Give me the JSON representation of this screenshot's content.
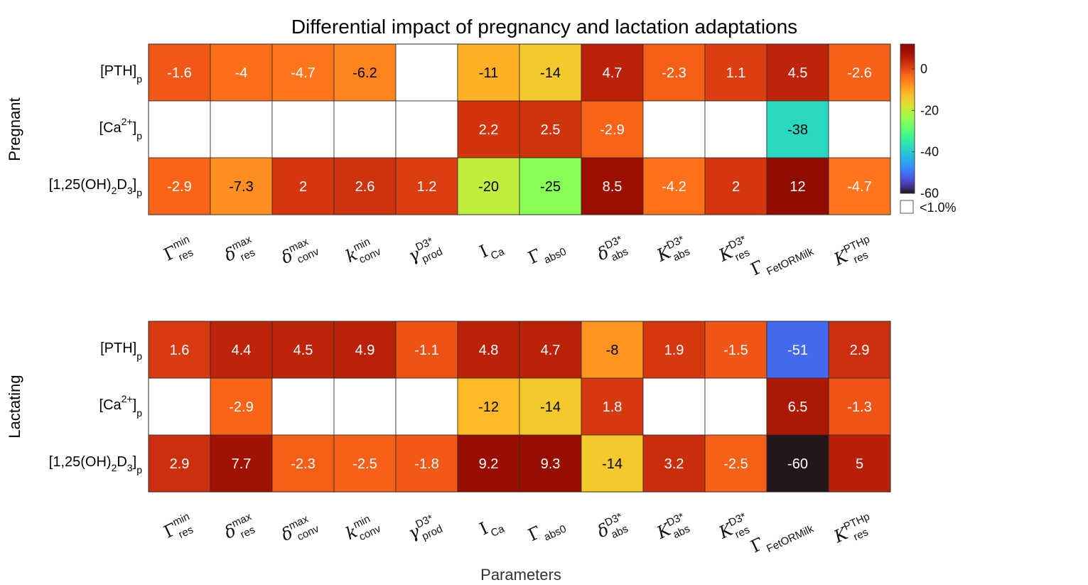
{
  "chart_data": {
    "type": "heatmap",
    "title": "Differential impact of pregnancy and lactation adaptations",
    "xlabel": "Parameters",
    "parameters": [
      {
        "base": "Γ",
        "sup": "min",
        "sub": "res"
      },
      {
        "base": "δ",
        "sup": "max",
        "sub": "res"
      },
      {
        "base": "δ",
        "sup": "max",
        "sub": "conv"
      },
      {
        "base": "k",
        "sup": "min",
        "sub": "conv"
      },
      {
        "base": "γ",
        "sup": "D3*",
        "sub": "prod"
      },
      {
        "base": "I",
        "sup": "",
        "sub": "Ca"
      },
      {
        "base": "Γ",
        "sup": "",
        "sub": "abs0"
      },
      {
        "base": "δ",
        "sup": "D3*",
        "sub": "abs"
      },
      {
        "base": "K",
        "sup": "D3*",
        "sub": "abs"
      },
      {
        "base": "K",
        "sup": "D3*",
        "sub": "res"
      },
      {
        "base": "Γ",
        "sup": "",
        "sub": "FetORMilk"
      },
      {
        "base": "K",
        "sup": "PTHp",
        "sub": "res"
      }
    ],
    "rows": [
      {
        "base": "[PTH]",
        "sub": "p"
      },
      {
        "base": "[Ca",
        "sup": "2+",
        "tail": "]",
        "sub": "p"
      },
      {
        "base": "[1,25(OH)",
        "sub1": "2",
        "mid": "D",
        "sub2": "3",
        "tail": "]",
        "sub": "p"
      }
    ],
    "groups": [
      {
        "name": "Pregnant",
        "values": [
          [
            -1.6,
            -4,
            -4.7,
            -6.2,
            null,
            -11,
            -14,
            4.7,
            -2.3,
            1.1,
            4.5,
            -2.6
          ],
          [
            null,
            null,
            null,
            null,
            null,
            2.2,
            2.5,
            -2.9,
            null,
            null,
            -38,
            null
          ],
          [
            -2.9,
            -7.3,
            2,
            2.6,
            1.2,
            -20,
            -25,
            8.5,
            -4.2,
            2,
            12,
            -4.7
          ]
        ]
      },
      {
        "name": "Lactating",
        "values": [
          [
            1.6,
            4.4,
            4.5,
            4.9,
            -1.1,
            4.8,
            4.7,
            -8,
            1.9,
            -1.5,
            -51,
            2.9
          ],
          [
            null,
            -2.9,
            null,
            null,
            null,
            -12,
            -14,
            1.8,
            null,
            null,
            6.5,
            -1.3
          ],
          [
            2.9,
            7.7,
            -2.3,
            -2.5,
            -1.8,
            9.2,
            9.3,
            -14,
            3.2,
            -2.5,
            -60,
            5
          ]
        ]
      }
    ],
    "colorbar": {
      "colormap": "turbo",
      "range": [
        -60,
        12
      ],
      "ticks": [
        "0",
        "-20",
        "-40",
        "-60"
      ],
      "tick_values": [
        0,
        -20,
        -40,
        -60
      ],
      "blank_label": "<1.0%"
    }
  }
}
